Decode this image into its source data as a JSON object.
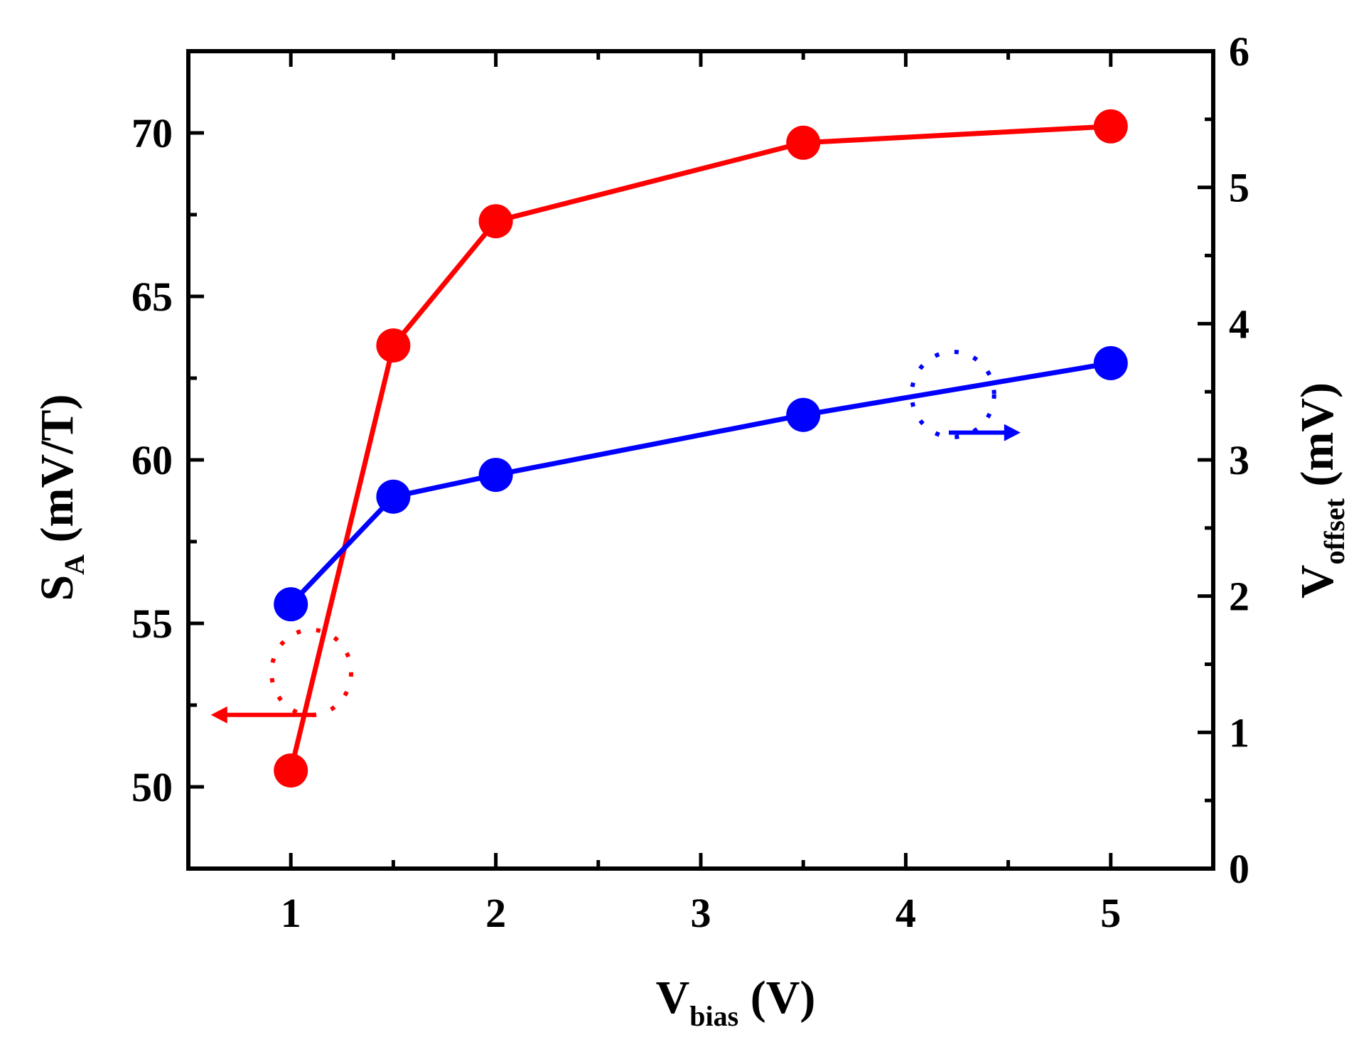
{
  "chart_data": {
    "type": "line",
    "title": "",
    "x": [
      1,
      1.5,
      2,
      3.5,
      5
    ],
    "xlim": [
      0.5,
      5.5
    ],
    "xticks": [
      1,
      2,
      3,
      4,
      5
    ],
    "xticks_minor": [
      1.5,
      2.5,
      3.5,
      4.5
    ],
    "xlabel": {
      "main": "V",
      "sub": "bias",
      "unit": " (V)"
    },
    "ylim_left": [
      47.5,
      72.5
    ],
    "yticks_left": [
      50,
      55,
      60,
      65,
      70
    ],
    "ylabel_left": {
      "main": "S",
      "sub": "A",
      "unit": " (mV/T)"
    },
    "ylim_right": [
      0,
      6
    ],
    "yticks_right": [
      0,
      1,
      2,
      3,
      4,
      5,
      6
    ],
    "ylabel_right": {
      "main": "V",
      "sub": "offset",
      "unit": " (mV)"
    },
    "series": [
      {
        "name": "S_A",
        "axis": "left",
        "color": "#ff0000",
        "values": [
          50.5,
          63.5,
          67.3,
          69.7,
          70.2
        ],
        "indicator": "arrow pointing to left axis"
      },
      {
        "name": "V_offset",
        "axis": "right",
        "color": "#0000ff",
        "values": [
          1.94,
          2.73,
          2.89,
          3.33,
          3.71
        ],
        "indicator": "arrow pointing to right axis"
      }
    ],
    "grid": false,
    "legend": "none"
  }
}
